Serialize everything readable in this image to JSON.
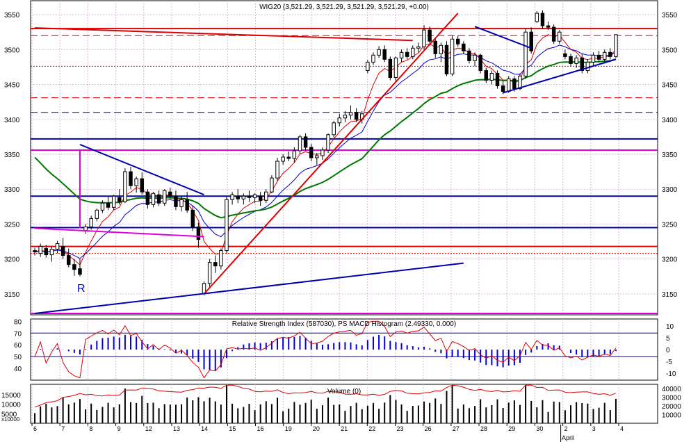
{
  "window": {
    "price_panel_title": "WIG20 (3,521.29, 3,521.29, 3,521.29, 3,521.29, +0.00)",
    "indicator_panel_title": "Relative Strength Index (587030), PS MACD Histogram (2.49330, 0.000)",
    "volume_panel_title": "Volume (0)",
    "volume_scale_label": "x10000",
    "month_label": "April",
    "annotation_label": "R"
  },
  "colors": {
    "background": "#ffffff",
    "grid": "#d9b8d9",
    "axis": "#000000",
    "candle": "#000000",
    "ma_short": "#dd0000",
    "ma_mid": "#0000cc",
    "ma_long": "#007700",
    "level_red": "#dd0000",
    "level_blue": "#0000aa",
    "level_magenta": "#dd00dd",
    "histogram": "#0000dd",
    "rsi": "#dd0000",
    "volume_bar": "#000000",
    "volume_ma": "#dd0000"
  },
  "chart_data": {
    "type": "candlestick",
    "x_tick_labels": [
      "6",
      "7",
      "8",
      "9",
      "12",
      "13",
      "14",
      "15",
      "16",
      "19",
      "20",
      "21",
      "22",
      "23",
      "26",
      "27",
      "28",
      "29",
      "30",
      "2",
      "3",
      "4"
    ],
    "price_axis": {
      "ylim": [
        3120,
        3570
      ],
      "ticks": [
        3150,
        3200,
        3250,
        3300,
        3350,
        3400,
        3450,
        3500,
        3550
      ]
    },
    "last_close": 3521.29,
    "candles": [
      [
        3212,
        3216,
        3205,
        3210
      ],
      [
        3208,
        3222,
        3203,
        3218
      ],
      [
        3215,
        3220,
        3202,
        3206
      ],
      [
        3206,
        3218,
        3196,
        3214
      ],
      [
        3214,
        3226,
        3208,
        3222
      ],
      [
        3218,
        3230,
        3200,
        3205
      ],
      [
        3205,
        3215,
        3188,
        3192
      ],
      [
        3192,
        3200,
        3176,
        3185
      ],
      [
        3186,
        3200,
        3175,
        3178
      ],
      [
        3240,
        3250,
        3236,
        3246
      ],
      [
        3246,
        3262,
        3242,
        3258
      ],
      [
        3258,
        3272,
        3254,
        3270
      ],
      [
        3270,
        3284,
        3266,
        3280
      ],
      [
        3280,
        3290,
        3270,
        3274
      ],
      [
        3274,
        3292,
        3270,
        3290
      ],
      [
        3288,
        3300,
        3278,
        3282
      ],
      [
        3282,
        3330,
        3280,
        3325
      ],
      [
        3325,
        3332,
        3300,
        3305
      ],
      [
        3305,
        3318,
        3295,
        3315
      ],
      [
        3315,
        3324,
        3292,
        3296
      ],
      [
        3296,
        3300,
        3272,
        3278
      ],
      [
        3278,
        3296,
        3274,
        3294
      ],
      [
        3292,
        3298,
        3276,
        3280
      ],
      [
        3280,
        3300,
        3276,
        3298
      ],
      [
        3296,
        3302,
        3286,
        3290
      ],
      [
        3290,
        3298,
        3270,
        3275
      ],
      [
        3275,
        3290,
        3268,
        3285
      ],
      [
        3285,
        3296,
        3266,
        3270
      ],
      [
        3270,
        3276,
        3240,
        3246
      ],
      [
        3246,
        3252,
        3216,
        3228
      ],
      [
        3150,
        3168,
        3148,
        3165
      ],
      [
        3165,
        3200,
        3160,
        3195
      ],
      [
        3195,
        3205,
        3180,
        3190
      ],
      [
        3190,
        3215,
        3185,
        3212
      ],
      [
        3212,
        3290,
        3208,
        3285
      ],
      [
        3285,
        3296,
        3278,
        3292
      ],
      [
        3290,
        3300,
        3280,
        3286
      ],
      [
        3286,
        3294,
        3278,
        3290
      ],
      [
        3290,
        3298,
        3282,
        3288
      ],
      [
        3288,
        3294,
        3280,
        3292
      ],
      [
        3290,
        3296,
        3276,
        3284
      ],
      [
        3284,
        3300,
        3280,
        3296
      ],
      [
        3296,
        3320,
        3294,
        3316
      ],
      [
        3316,
        3345,
        3312,
        3340
      ],
      [
        3340,
        3350,
        3335,
        3346
      ],
      [
        3346,
        3354,
        3340,
        3344
      ],
      [
        3344,
        3360,
        3338,
        3355
      ],
      [
        3355,
        3378,
        3350,
        3375
      ],
      [
        3375,
        3380,
        3355,
        3360
      ],
      [
        3360,
        3365,
        3340,
        3345
      ],
      [
        3345,
        3352,
        3335,
        3348
      ],
      [
        3348,
        3360,
        3342,
        3356
      ],
      [
        3356,
        3380,
        3352,
        3378
      ],
      [
        3378,
        3398,
        3374,
        3395
      ],
      [
        3395,
        3408,
        3390,
        3402
      ],
      [
        3402,
        3412,
        3396,
        3406
      ],
      [
        3406,
        3420,
        3400,
        3410
      ],
      [
        3410,
        3416,
        3396,
        3400
      ],
      [
        3400,
        3412,
        3394,
        3408
      ],
      [
        3470,
        3485,
        3466,
        3482
      ],
      [
        3482,
        3496,
        3478,
        3492
      ],
      [
        3492,
        3505,
        3488,
        3500
      ],
      [
        3500,
        3506,
        3482,
        3486
      ],
      [
        3486,
        3490,
        3456,
        3460
      ],
      [
        3460,
        3490,
        3455,
        3488
      ],
      [
        3488,
        3500,
        3482,
        3496
      ],
      [
        3496,
        3502,
        3486,
        3490
      ],
      [
        3490,
        3506,
        3486,
        3502
      ],
      [
        3502,
        3510,
        3496,
        3504
      ],
      [
        3504,
        3535,
        3500,
        3528
      ],
      [
        3528,
        3533,
        3508,
        3512
      ],
      [
        3512,
        3516,
        3488,
        3494
      ],
      [
        3494,
        3510,
        3482,
        3506
      ],
      [
        3506,
        3512,
        3462,
        3465
      ],
      [
        3465,
        3520,
        3462,
        3515
      ],
      [
        3515,
        3520,
        3504,
        3508
      ],
      [
        3508,
        3512,
        3494,
        3498
      ],
      [
        3498,
        3502,
        3480,
        3484
      ],
      [
        3484,
        3496,
        3476,
        3492
      ],
      [
        3492,
        3494,
        3466,
        3470
      ],
      [
        3470,
        3474,
        3452,
        3456
      ],
      [
        3456,
        3470,
        3450,
        3466
      ],
      [
        3466,
        3470,
        3444,
        3448
      ],
      [
        3448,
        3455,
        3436,
        3440
      ],
      [
        3440,
        3462,
        3438,
        3458
      ],
      [
        3458,
        3462,
        3440,
        3444
      ],
      [
        3444,
        3466,
        3442,
        3462
      ],
      [
        3462,
        3530,
        3458,
        3525
      ],
      [
        3525,
        3532,
        3494,
        3498
      ],
      [
        3540,
        3555,
        3538,
        3552
      ],
      [
        3552,
        3556,
        3530,
        3534
      ],
      [
        3534,
        3540,
        3528,
        3532
      ],
      [
        3532,
        3536,
        3508,
        3512
      ],
      [
        3512,
        3528,
        3508,
        3525
      ],
      [
        3494,
        3500,
        3486,
        3490
      ],
      [
        3490,
        3494,
        3476,
        3480
      ],
      [
        3480,
        3492,
        3474,
        3488
      ],
      [
        3488,
        3494,
        3466,
        3470
      ],
      [
        3470,
        3486,
        3466,
        3482
      ],
      [
        3482,
        3496,
        3476,
        3492
      ],
      [
        3492,
        3498,
        3482,
        3486
      ],
      [
        3486,
        3500,
        3480,
        3496
      ],
      [
        3496,
        3502,
        3486,
        3490
      ],
      [
        3490,
        3522,
        3488,
        3521.29
      ]
    ],
    "horizontal_levels": [
      {
        "price": 3530,
        "color": "level_red",
        "style": "solid"
      },
      {
        "price": 3520,
        "color": "level_red",
        "style": "dashed"
      },
      {
        "price": 3476,
        "color": "level_red",
        "style": "dotted"
      },
      {
        "price": 3431,
        "color": "level_red",
        "style": "dashed"
      },
      {
        "price": 3410,
        "color": "level_blue",
        "style": "dashed"
      },
      {
        "price": 3372,
        "color": "level_blue",
        "style": "solid"
      },
      {
        "price": 3356,
        "color": "level_magenta",
        "style": "solid"
      },
      {
        "price": 3290,
        "color": "level_blue",
        "style": "solid"
      },
      {
        "price": 3245,
        "color": "level_blue",
        "style": "solid"
      },
      {
        "price": 3218,
        "color": "level_red",
        "style": "solid"
      },
      {
        "price": 3208,
        "color": "level_red",
        "style": "dotted"
      },
      {
        "price": 3122,
        "color": "level_magenta",
        "style": "solid"
      }
    ],
    "trendlines": [
      {
        "from": [
          0,
          3531
        ],
        "to": [
          67,
          3513
        ],
        "color": "level_red"
      },
      {
        "from": [
          30,
          3150
        ],
        "to": [
          75,
          3552
        ],
        "color": "level_red"
      },
      {
        "from": [
          0,
          3122
        ],
        "to": [
          76,
          3194
        ],
        "color": "level_blue"
      },
      {
        "from": [
          0,
          3244
        ],
        "to": [
          30,
          3232
        ],
        "color": "level_magenta"
      },
      {
        "from": [
          8,
          3356
        ],
        "to": [
          8,
          3244
        ],
        "color": "level_magenta"
      },
      {
        "from": [
          78,
          3533
        ],
        "to": [
          88,
          3502
        ],
        "color": "level_blue"
      },
      {
        "from": [
          83,
          3438
        ],
        "to": [
          103,
          3486
        ],
        "color": "level_blue"
      },
      {
        "from": [
          8,
          3364
        ],
        "to": [
          30,
          3292
        ],
        "color": "level_blue"
      }
    ],
    "indicator_axis": {
      "left_ticks": [
        40,
        50,
        60,
        70,
        80
      ],
      "right_ticks": [
        -10,
        -5,
        0,
        5,
        10
      ],
      "left_ylim": [
        30,
        82
      ],
      "right_ylim": [
        -13,
        13
      ]
    },
    "rsi_reference_lines": [
      70,
      50
    ],
    "volume_axis": {
      "left_ticks": [
        5000,
        10000,
        15000
      ],
      "right_ticks": [
        10000,
        20000,
        30000,
        40000
      ],
      "ylim": [
        0,
        45000
      ]
    }
  }
}
